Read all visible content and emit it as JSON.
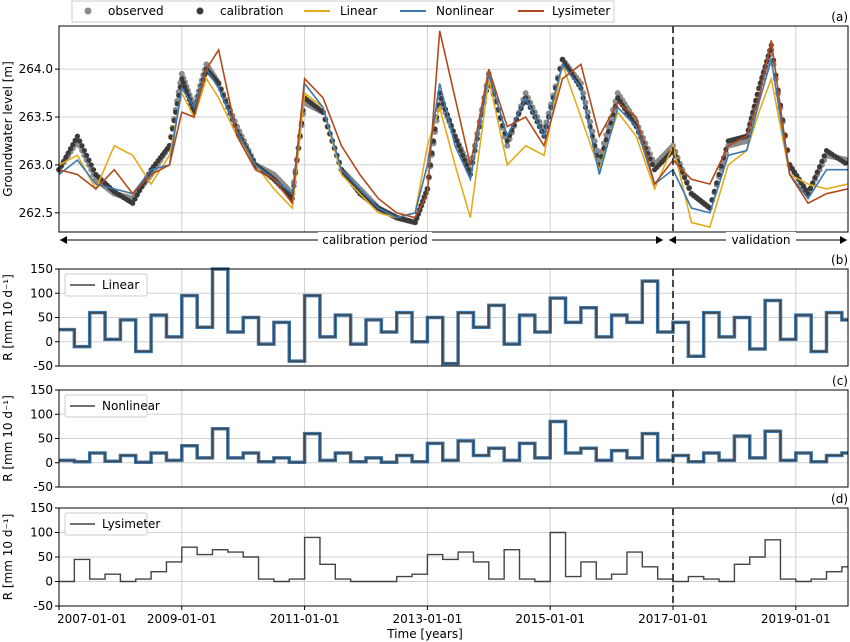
{
  "colors": {
    "observed": "#8c8c8c",
    "calibration": "#3a3a3a",
    "linear": "#e3ac1c",
    "nonlinear": "#3b78b0",
    "lysimeter": "#b04a1e",
    "recharge_line": "#444444",
    "grid": "#d0d0d0",
    "divider": "#333333"
  },
  "xaxis": {
    "label": "Time [years]",
    "ticks": [
      "2007-01-01",
      "2009-01-01",
      "2011-01-01",
      "2013-01-01",
      "2015-01-01",
      "2017-01-01",
      "2019-01-01"
    ],
    "range": [
      2007.0,
      2019.85
    ]
  },
  "periods": {
    "calibration_label": "calibration period",
    "validation_label": "validation",
    "split_year": 2017.0
  },
  "chart_data": [
    {
      "type": "line",
      "panel_tag": "(a)",
      "ylabel": "Groundwater level [m]",
      "ylim": [
        262.3,
        264.45
      ],
      "yticks": [
        "262.5",
        "263.0",
        "263.5",
        "264.0"
      ],
      "grid": true,
      "legend": {
        "placement": "top",
        "entries": [
          "observed",
          "calibration",
          "Linear",
          "Nonlinear",
          "Lysimeter"
        ]
      },
      "x": [
        2007.0,
        2007.3,
        2007.6,
        2007.9,
        2008.2,
        2008.5,
        2008.8,
        2009.0,
        2009.2,
        2009.4,
        2009.6,
        2009.9,
        2010.2,
        2010.5,
        2010.8,
        2011.0,
        2011.3,
        2011.6,
        2011.9,
        2012.2,
        2012.5,
        2012.8,
        2013.0,
        2013.2,
        2013.45,
        2013.7,
        2014.0,
        2014.3,
        2014.6,
        2014.9,
        2015.2,
        2015.5,
        2015.8,
        2016.1,
        2016.4,
        2016.7,
        2017.0,
        2017.3,
        2017.6,
        2017.9,
        2018.2,
        2018.4,
        2018.6,
        2018.9,
        2019.2,
        2019.5,
        2019.85
      ],
      "series": [
        {
          "name": "observed",
          "key": "observed",
          "values": [
            262.95,
            263.25,
            262.85,
            262.7,
            262.65,
            262.9,
            263.2,
            263.95,
            263.6,
            264.05,
            263.85,
            263.4,
            263.0,
            262.9,
            262.7,
            263.65,
            263.55,
            262.95,
            262.75,
            262.55,
            262.45,
            262.4,
            262.75,
            263.7,
            263.3,
            262.95,
            263.95,
            263.2,
            263.75,
            263.35,
            264.1,
            263.85,
            263.05,
            263.75,
            263.45,
            263.0,
            263.2,
            262.7,
            262.55,
            263.2,
            263.25,
            263.8,
            264.2,
            263.0,
            262.7,
            263.1,
            263.05
          ]
        },
        {
          "name": "calibration",
          "key": "calibration",
          "values": [
            262.95,
            263.3,
            262.9,
            262.72,
            262.6,
            262.95,
            263.2,
            263.9,
            263.55,
            264.0,
            263.85,
            263.35,
            263.0,
            262.85,
            262.65,
            263.7,
            263.55,
            262.95,
            262.7,
            262.55,
            262.45,
            262.4,
            262.75,
            263.75,
            263.3,
            262.9,
            263.9,
            263.25,
            263.7,
            263.3,
            264.1,
            263.8,
            263.0,
            263.7,
            263.4,
            262.95,
            263.15,
            262.7,
            262.55,
            263.25,
            263.3,
            263.8,
            264.25,
            263.0,
            262.7,
            263.15,
            263.0
          ]
        },
        {
          "name": "Linear",
          "key": "linear",
          "values": [
            263.0,
            263.1,
            262.75,
            263.2,
            263.1,
            262.8,
            263.1,
            263.75,
            263.5,
            263.9,
            263.7,
            263.3,
            263.0,
            262.75,
            262.55,
            263.75,
            263.6,
            262.9,
            262.7,
            262.5,
            262.45,
            262.5,
            263.2,
            263.6,
            263.0,
            262.45,
            263.9,
            263.0,
            263.2,
            263.1,
            264.05,
            263.5,
            262.95,
            263.55,
            263.3,
            262.75,
            263.2,
            262.4,
            262.35,
            263.0,
            263.15,
            263.55,
            263.9,
            262.9,
            262.8,
            262.75,
            262.8
          ]
        },
        {
          "name": "Nonlinear",
          "key": "nonlinear",
          "values": [
            262.9,
            263.05,
            262.8,
            262.75,
            262.7,
            262.95,
            263.0,
            263.8,
            263.6,
            264.0,
            263.8,
            263.35,
            263.0,
            262.85,
            262.7,
            263.85,
            263.6,
            262.95,
            262.75,
            262.55,
            262.45,
            262.5,
            263.0,
            263.85,
            263.2,
            262.85,
            263.95,
            263.3,
            263.7,
            263.3,
            264.05,
            263.8,
            262.9,
            263.6,
            263.4,
            262.8,
            262.95,
            262.55,
            262.5,
            263.1,
            263.15,
            263.65,
            264.1,
            262.9,
            262.65,
            262.95,
            262.95
          ]
        },
        {
          "name": "Lysimeter",
          "key": "lysimeter",
          "values": [
            262.95,
            262.9,
            262.75,
            262.95,
            262.7,
            262.9,
            263.0,
            263.55,
            263.5,
            264.0,
            264.2,
            263.3,
            262.95,
            262.85,
            262.6,
            263.9,
            263.7,
            263.2,
            262.9,
            262.65,
            262.5,
            262.45,
            262.7,
            264.4,
            263.7,
            263.0,
            264.0,
            263.4,
            263.5,
            263.2,
            263.9,
            264.05,
            263.3,
            263.65,
            263.5,
            262.8,
            263.05,
            262.85,
            262.8,
            263.2,
            263.3,
            263.7,
            264.3,
            262.9,
            262.6,
            262.7,
            262.75
          ]
        }
      ]
    },
    {
      "type": "line",
      "panel_tag": "(b)",
      "ylabel": "R [mm 10 d⁻¹]",
      "ylim": [
        -50,
        150
      ],
      "yticks": [
        "-50",
        "0",
        "50",
        "100",
        "150"
      ],
      "grid": true,
      "legend": {
        "placement": "top-left",
        "entries": [
          "Linear"
        ]
      },
      "x": [
        2007.0,
        2007.25,
        2007.5,
        2007.75,
        2008.0,
        2008.25,
        2008.5,
        2008.75,
        2009.0,
        2009.25,
        2009.5,
        2009.75,
        2010.0,
        2010.25,
        2010.5,
        2010.75,
        2011.0,
        2011.25,
        2011.5,
        2011.75,
        2012.0,
        2012.25,
        2012.5,
        2012.75,
        2013.0,
        2013.25,
        2013.5,
        2013.75,
        2014.0,
        2014.25,
        2014.5,
        2014.75,
        2015.0,
        2015.25,
        2015.5,
        2015.75,
        2016.0,
        2016.25,
        2016.5,
        2016.75,
        2017.0,
        2017.25,
        2017.5,
        2017.75,
        2018.0,
        2018.25,
        2018.5,
        2018.75,
        2019.0,
        2019.25,
        2019.5,
        2019.75
      ],
      "series": [
        {
          "name": "Linear",
          "key": "recharge",
          "values": [
            25,
            -10,
            60,
            5,
            45,
            -20,
            55,
            10,
            95,
            30,
            150,
            20,
            50,
            -5,
            40,
            -40,
            95,
            10,
            55,
            -5,
            45,
            20,
            60,
            0,
            50,
            -45,
            60,
            30,
            75,
            -5,
            55,
            20,
            90,
            40,
            70,
            10,
            55,
            40,
            125,
            20,
            40,
            -30,
            60,
            10,
            50,
            -15,
            85,
            5,
            55,
            -20,
            60,
            45
          ]
        }
      ]
    },
    {
      "type": "line",
      "panel_tag": "(c)",
      "ylabel": "R [mm 10 d⁻¹]",
      "ylim": [
        -50,
        150
      ],
      "yticks": [
        "-50",
        "0",
        "50",
        "100",
        "150"
      ],
      "grid": true,
      "legend": {
        "placement": "top-left",
        "entries": [
          "Nonlinear"
        ]
      },
      "x": [
        2007.0,
        2007.25,
        2007.5,
        2007.75,
        2008.0,
        2008.25,
        2008.5,
        2008.75,
        2009.0,
        2009.25,
        2009.5,
        2009.75,
        2010.0,
        2010.25,
        2010.5,
        2010.75,
        2011.0,
        2011.25,
        2011.5,
        2011.75,
        2012.0,
        2012.25,
        2012.5,
        2012.75,
        2013.0,
        2013.25,
        2013.5,
        2013.75,
        2014.0,
        2014.25,
        2014.5,
        2014.75,
        2015.0,
        2015.25,
        2015.5,
        2015.75,
        2016.0,
        2016.25,
        2016.5,
        2016.75,
        2017.0,
        2017.25,
        2017.5,
        2017.75,
        2018.0,
        2018.25,
        2018.5,
        2018.75,
        2019.0,
        2019.25,
        2019.5,
        2019.75
      ],
      "series": [
        {
          "name": "Nonlinear",
          "key": "recharge",
          "values": [
            5,
            2,
            20,
            3,
            15,
            1,
            20,
            5,
            35,
            10,
            70,
            10,
            20,
            2,
            10,
            1,
            60,
            5,
            20,
            2,
            10,
            1,
            15,
            2,
            40,
            5,
            45,
            15,
            30,
            5,
            40,
            10,
            85,
            20,
            30,
            5,
            25,
            10,
            60,
            5,
            15,
            2,
            20,
            5,
            55,
            10,
            65,
            5,
            20,
            2,
            15,
            20
          ]
        }
      ]
    },
    {
      "type": "line",
      "panel_tag": "(d)",
      "ylabel": "R [mm 10 d⁻¹]",
      "ylim": [
        -50,
        150
      ],
      "yticks": [
        "-50",
        "0",
        "50",
        "100",
        "150"
      ],
      "grid": true,
      "legend": {
        "placement": "top-left",
        "entries": [
          "Lysimeter"
        ]
      },
      "x": [
        2007.0,
        2007.25,
        2007.5,
        2007.75,
        2008.0,
        2008.25,
        2008.5,
        2008.75,
        2009.0,
        2009.25,
        2009.5,
        2009.75,
        2010.0,
        2010.25,
        2010.5,
        2010.75,
        2011.0,
        2011.25,
        2011.5,
        2011.75,
        2012.0,
        2012.25,
        2012.5,
        2012.75,
        2013.0,
        2013.25,
        2013.5,
        2013.75,
        2014.0,
        2014.25,
        2014.5,
        2014.75,
        2015.0,
        2015.25,
        2015.5,
        2015.75,
        2016.0,
        2016.25,
        2016.5,
        2016.75,
        2017.0,
        2017.25,
        2017.5,
        2017.75,
        2018.0,
        2018.25,
        2018.5,
        2018.75,
        2019.0,
        2019.25,
        2019.5,
        2019.75
      ],
      "series": [
        {
          "name": "Lysimeter",
          "key": "recharge",
          "values": [
            0,
            45,
            5,
            15,
            0,
            5,
            20,
            40,
            70,
            55,
            65,
            60,
            50,
            5,
            0,
            5,
            90,
            35,
            5,
            0,
            0,
            0,
            10,
            15,
            55,
            45,
            60,
            40,
            5,
            65,
            5,
            0,
            100,
            10,
            40,
            5,
            15,
            60,
            30,
            5,
            0,
            10,
            5,
            0,
            35,
            50,
            85,
            5,
            0,
            5,
            20,
            30
          ]
        }
      ]
    }
  ]
}
